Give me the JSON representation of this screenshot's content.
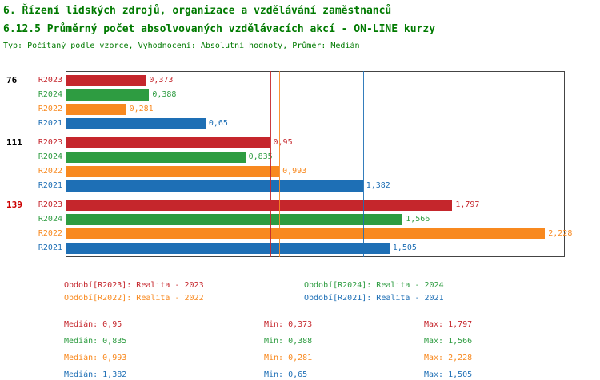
{
  "header": {
    "title_line1": "6. Řízení lidských zdrojů, organizace a vzdělávání zaměstnanců",
    "title_line2": "6.12.5 Průměrný počet absolvovaných vzdělávacích akcí - ON-LINE kurzy",
    "meta": "Typ: Počítaný podle vzorce, Vyhodnocení: Absolutní hodnoty, Průměr: Medián"
  },
  "colors": {
    "title_green": "#007A00",
    "r2023": "#C5262C",
    "r2024": "#2E9C41",
    "r2022": "#F8891F",
    "r2021": "#1E6FB5",
    "group_label_default": "#000000",
    "group_label_highlight": "#CC0000",
    "frame": "#444444"
  },
  "chart_data": {
    "type": "bar",
    "orientation": "horizontal",
    "xlim": [
      0,
      2.32
    ],
    "grid": false,
    "series_order": [
      "R2023",
      "R2024",
      "R2022",
      "R2021"
    ],
    "series_colors": {
      "R2023": "#C5262C",
      "R2024": "#2E9C41",
      "R2022": "#F8891F",
      "R2021": "#1E6FB5"
    },
    "groups": [
      {
        "label": "76",
        "highlight": false,
        "bars": [
          {
            "series": "R2023",
            "value": 0.373,
            "display": "0,373"
          },
          {
            "series": "R2024",
            "value": 0.388,
            "display": "0,388"
          },
          {
            "series": "R2022",
            "value": 0.281,
            "display": "0,281"
          },
          {
            "series": "R2021",
            "value": 0.65,
            "display": "0,65"
          }
        ]
      },
      {
        "label": "111",
        "highlight": false,
        "bars": [
          {
            "series": "R2023",
            "value": 0.95,
            "display": "0,95"
          },
          {
            "series": "R2024",
            "value": 0.835,
            "display": "0,835"
          },
          {
            "series": "R2022",
            "value": 0.993,
            "display": "0,993"
          },
          {
            "series": "R2021",
            "value": 1.382,
            "display": "1,382"
          }
        ]
      },
      {
        "label": "139",
        "highlight": true,
        "bars": [
          {
            "series": "R2023",
            "value": 1.797,
            "display": "1,797"
          },
          {
            "series": "R2024",
            "value": 1.566,
            "display": "1,566"
          },
          {
            "series": "R2022",
            "value": 2.228,
            "display": "2,228"
          },
          {
            "series": "R2021",
            "value": 1.505,
            "display": "1,505"
          }
        ]
      }
    ],
    "median_lines": [
      {
        "series": "R2023",
        "value": 0.95
      },
      {
        "series": "R2024",
        "value": 0.835
      },
      {
        "series": "R2022",
        "value": 0.993
      },
      {
        "series": "R2021",
        "value": 1.382
      }
    ]
  },
  "legend": [
    {
      "series": "R2023",
      "text": "Období[R2023]: Realita - 2023"
    },
    {
      "series": "R2024",
      "text": "Období[R2024]: Realita - 2024"
    },
    {
      "series": "R2022",
      "text": "Období[R2022]: Realita - 2022"
    },
    {
      "series": "R2021",
      "text": "Období[R2021]: Realita - 2021"
    }
  ],
  "stats": [
    {
      "series": "R2023",
      "median_label": "Medián: 0,95",
      "min_label": "Min: 0,373",
      "max_label": "Max: 1,797"
    },
    {
      "series": "R2024",
      "median_label": "Medián: 0,835",
      "min_label": "Min: 0,388",
      "max_label": "Max: 1,566"
    },
    {
      "series": "R2022",
      "median_label": "Medián: 0,993",
      "min_label": "Min: 0,281",
      "max_label": "Max: 2,228"
    },
    {
      "series": "R2021",
      "median_label": "Medián: 1,382",
      "min_label": "Min: 0,65",
      "max_label": "Max: 1,505"
    }
  ]
}
